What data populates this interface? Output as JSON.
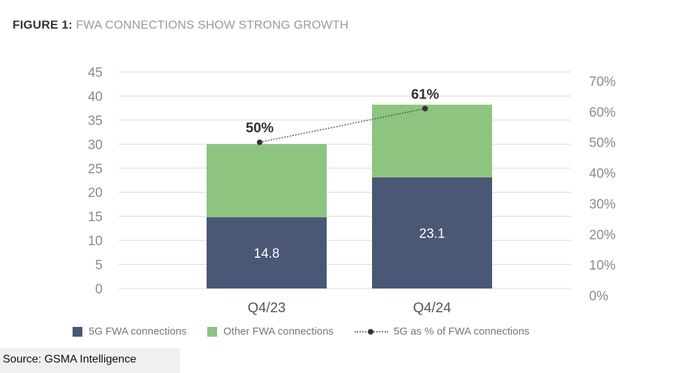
{
  "figure": {
    "label": "FIGURE 1:",
    "title": "FWA CONNECTIONS SHOW STRONG GROWTH"
  },
  "colors": {
    "fiveG": "#4a5875",
    "other": "#8cc480",
    "line": "#555555",
    "marker": "#333333"
  },
  "legend": {
    "five_g": "5G FWA connections",
    "other": "Other FWA connections",
    "pct": "5G as %  of FWA connections"
  },
  "source": "Source: GSMA Intelligence",
  "chart_data": {
    "type": "bar",
    "stacked": true,
    "categories": [
      "Q4/23",
      "Q4/24"
    ],
    "series": [
      {
        "name": "5G FWA connections",
        "values": [
          14.8,
          23.1
        ],
        "labels": [
          "14.8",
          "23.1"
        ]
      },
      {
        "name": "Other FWA connections",
        "values": [
          15.2,
          15.1
        ]
      }
    ],
    "secondary_series": {
      "name": "5G as %  of FWA connections",
      "type": "line",
      "values": [
        50,
        61
      ],
      "labels": [
        "50%",
        "61%"
      ]
    },
    "ylim": [
      0,
      45
    ],
    "yticks": [
      "0",
      "5",
      "10",
      "15",
      "20",
      "25",
      "30",
      "35",
      "40",
      "45"
    ],
    "y2lim": [
      0,
      70
    ],
    "y2ticks": [
      "0%",
      "10%",
      "20%",
      "30%",
      "40%",
      "50%",
      "60%",
      "70%"
    ],
    "grid": true,
    "legend_position": "bottom"
  }
}
